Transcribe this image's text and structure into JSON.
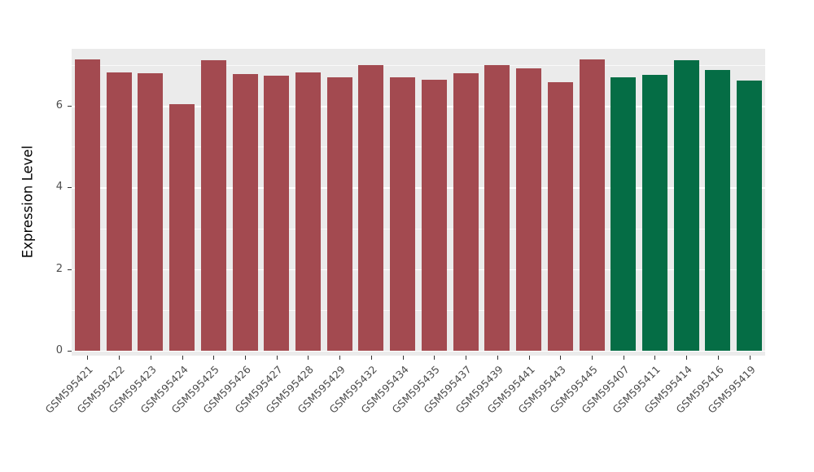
{
  "figure": {
    "background_color": "#ffffff",
    "panel_background_color": "#ebebeb",
    "gridline_color": "#ffffff",
    "tick_label_color": "#4d4d4d",
    "axis_title_color": "#000000"
  },
  "chart_data": {
    "type": "bar",
    "title": "",
    "xlabel": "",
    "ylabel": "Expression Level",
    "ylim": [
      0,
      7.4
    ],
    "yticks": [
      0,
      2,
      4,
      6
    ],
    "yticks_minor": [
      1,
      3,
      5,
      7
    ],
    "grid": "major and minor white gridlines on gray panel",
    "legend_position": "none",
    "categories": [
      "GSM595421",
      "GSM595422",
      "GSM595423",
      "GSM595424",
      "GSM595425",
      "GSM595426",
      "GSM595427",
      "GSM595428",
      "GSM595429",
      "GSM595432",
      "GSM595434",
      "GSM595435",
      "GSM595437",
      "GSM595439",
      "GSM595441",
      "GSM595443",
      "GSM595445",
      "GSM595407",
      "GSM595411",
      "GSM595414",
      "GSM595416",
      "GSM595419"
    ],
    "values": [
      7.15,
      6.82,
      6.81,
      6.05,
      7.12,
      6.78,
      6.75,
      6.82,
      6.7,
      7.0,
      6.7,
      6.65,
      6.81,
      7.0,
      6.93,
      6.58,
      7.15,
      6.7,
      6.76,
      7.12,
      6.88,
      6.63
    ],
    "group_colors": {
      "group_1_red": "#a34a50",
      "group_2_green": "#056d45"
    },
    "bar_colors": [
      "#a34a50",
      "#a34a50",
      "#a34a50",
      "#a34a50",
      "#a34a50",
      "#a34a50",
      "#a34a50",
      "#a34a50",
      "#a34a50",
      "#a34a50",
      "#a34a50",
      "#a34a50",
      "#a34a50",
      "#a34a50",
      "#a34a50",
      "#a34a50",
      "#a34a50",
      "#056d45",
      "#056d45",
      "#056d45",
      "#056d45",
      "#056d45"
    ]
  }
}
